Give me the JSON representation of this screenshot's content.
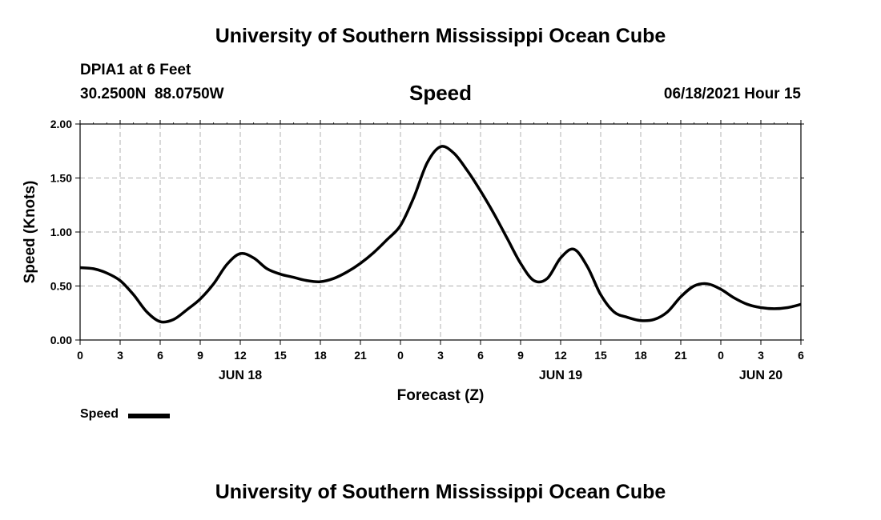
{
  "header": {
    "top_title": "University of Southern Mississippi Ocean Cube",
    "station": "DPIA1 at 6 Feet",
    "coords": "30.2500N  88.0750W",
    "plot_title": "Speed",
    "timestamp": "06/18/2021 Hour 15",
    "bottom_title": "University of Southern Mississippi Ocean Cube"
  },
  "legend": {
    "label": "Speed",
    "color": "#000000"
  },
  "chart_data": {
    "type": "line",
    "title": "Speed",
    "xlabel": "Forecast (Z)",
    "ylabel": "Speed (Knots)",
    "ylim": [
      0,
      2
    ],
    "xlim": [
      0,
      54
    ],
    "grid": true,
    "legend_position": "bottom-left",
    "x_unit": "hours from 06/18 00Z",
    "y_ticks": [
      "0.00",
      "0.50",
      "1.00",
      "1.50",
      "2.00"
    ],
    "x_ticks": [
      "0",
      "3",
      "6",
      "9",
      "12",
      "15",
      "18",
      "21",
      "0",
      "3",
      "6",
      "9",
      "12",
      "15",
      "18",
      "21",
      "0",
      "3",
      "6"
    ],
    "day_labels": [
      {
        "label": "JUN 18",
        "x": 12
      },
      {
        "label": "JUN 19",
        "x": 36
      },
      {
        "label": "JUN 20",
        "x": 51
      }
    ],
    "series": [
      {
        "name": "Speed",
        "color": "#000000",
        "x": [
          0,
          1,
          2,
          3,
          4,
          5,
          6,
          7,
          8,
          9,
          10,
          11,
          12,
          13,
          14,
          15,
          16,
          17,
          18,
          19,
          20,
          21,
          22,
          23,
          24,
          25,
          26,
          27,
          28,
          29,
          30,
          31,
          32,
          33,
          34,
          35,
          36,
          37,
          38,
          39,
          40,
          41,
          42,
          43,
          44,
          45,
          46,
          47,
          48,
          49,
          50,
          51,
          52,
          53,
          54
        ],
        "values": [
          0.67,
          0.66,
          0.62,
          0.55,
          0.42,
          0.26,
          0.17,
          0.19,
          0.28,
          0.38,
          0.52,
          0.7,
          0.8,
          0.76,
          0.66,
          0.61,
          0.58,
          0.55,
          0.54,
          0.57,
          0.63,
          0.71,
          0.81,
          0.93,
          1.06,
          1.32,
          1.64,
          1.79,
          1.73,
          1.57,
          1.38,
          1.17,
          0.94,
          0.71,
          0.55,
          0.57,
          0.76,
          0.84,
          0.68,
          0.42,
          0.26,
          0.21,
          0.18,
          0.19,
          0.26,
          0.4,
          0.5,
          0.52,
          0.47,
          0.39,
          0.33,
          0.3,
          0.29,
          0.3,
          0.33
        ]
      }
    ]
  }
}
